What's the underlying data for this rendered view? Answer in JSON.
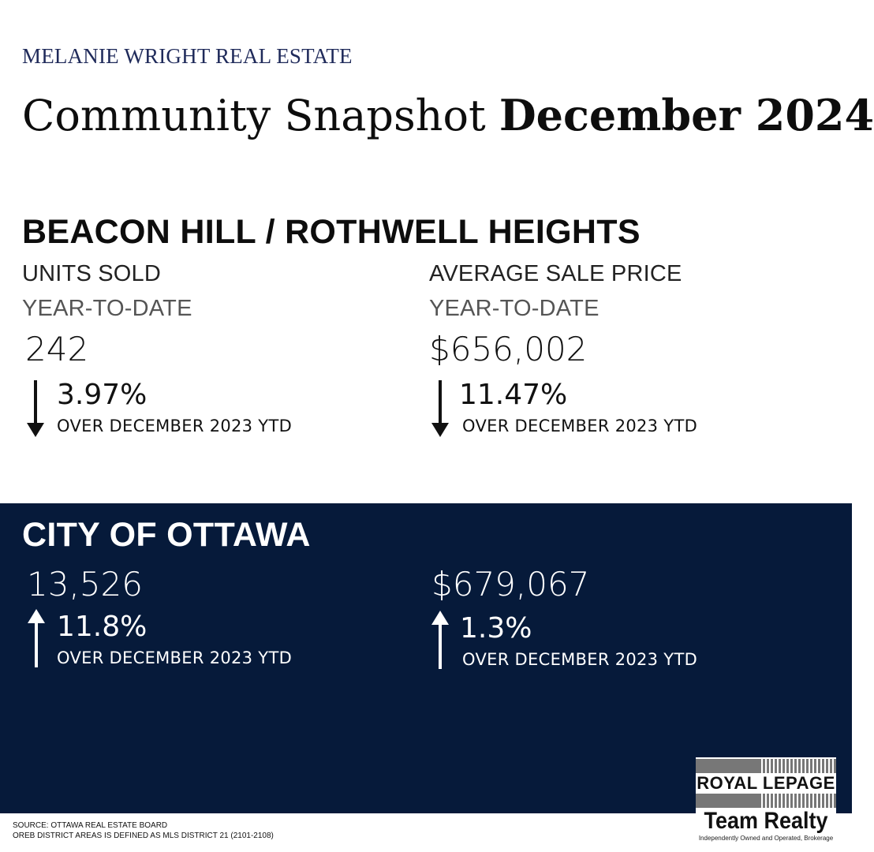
{
  "header": {
    "brand": "MELANIE WRIGHT REAL ESTATE",
    "title_light": "Community Snapshot ",
    "title_bold": "December 2024"
  },
  "community": {
    "name": "BEACON HILL / ROTHWELL HEIGHTS",
    "units": {
      "label": "UNITS SOLD",
      "period": "YEAR-TO-DATE",
      "value": "242",
      "direction": "down",
      "change": "3.97%",
      "comparison": "OVER DECEMBER 2023 YTD"
    },
    "price": {
      "label": "AVERAGE SALE PRICE",
      "period": "YEAR-TO-DATE",
      "value": "$656,002",
      "direction": "down",
      "change": "11.47%",
      "comparison": "OVER DECEMBER 2023 YTD"
    }
  },
  "city": {
    "name": "CITY OF OTTAWA",
    "units": {
      "value": "13,526",
      "direction": "up",
      "change": "11.8%",
      "comparison": "OVER DECEMBER 2023 YTD"
    },
    "price": {
      "value": "$679,067",
      "direction": "up",
      "change": "1.3%",
      "comparison": "OVER DECEMBER 2023 YTD"
    }
  },
  "footer": {
    "source": "SOURCE: OTTAWA REAL ESTATE BOARD",
    "note": "OREB DISTRICT AREAS IS DEFINED AS MLS DISTRICT 21 (2101-2108)"
  },
  "logo": {
    "line1": "ROYAL LEPAGE",
    "line2": "Team Realty",
    "tagline": "Independently Owned and Operated, Brokerage"
  },
  "colors": {
    "navy": "#061a3a",
    "brand_text": "#1f2a5a"
  }
}
